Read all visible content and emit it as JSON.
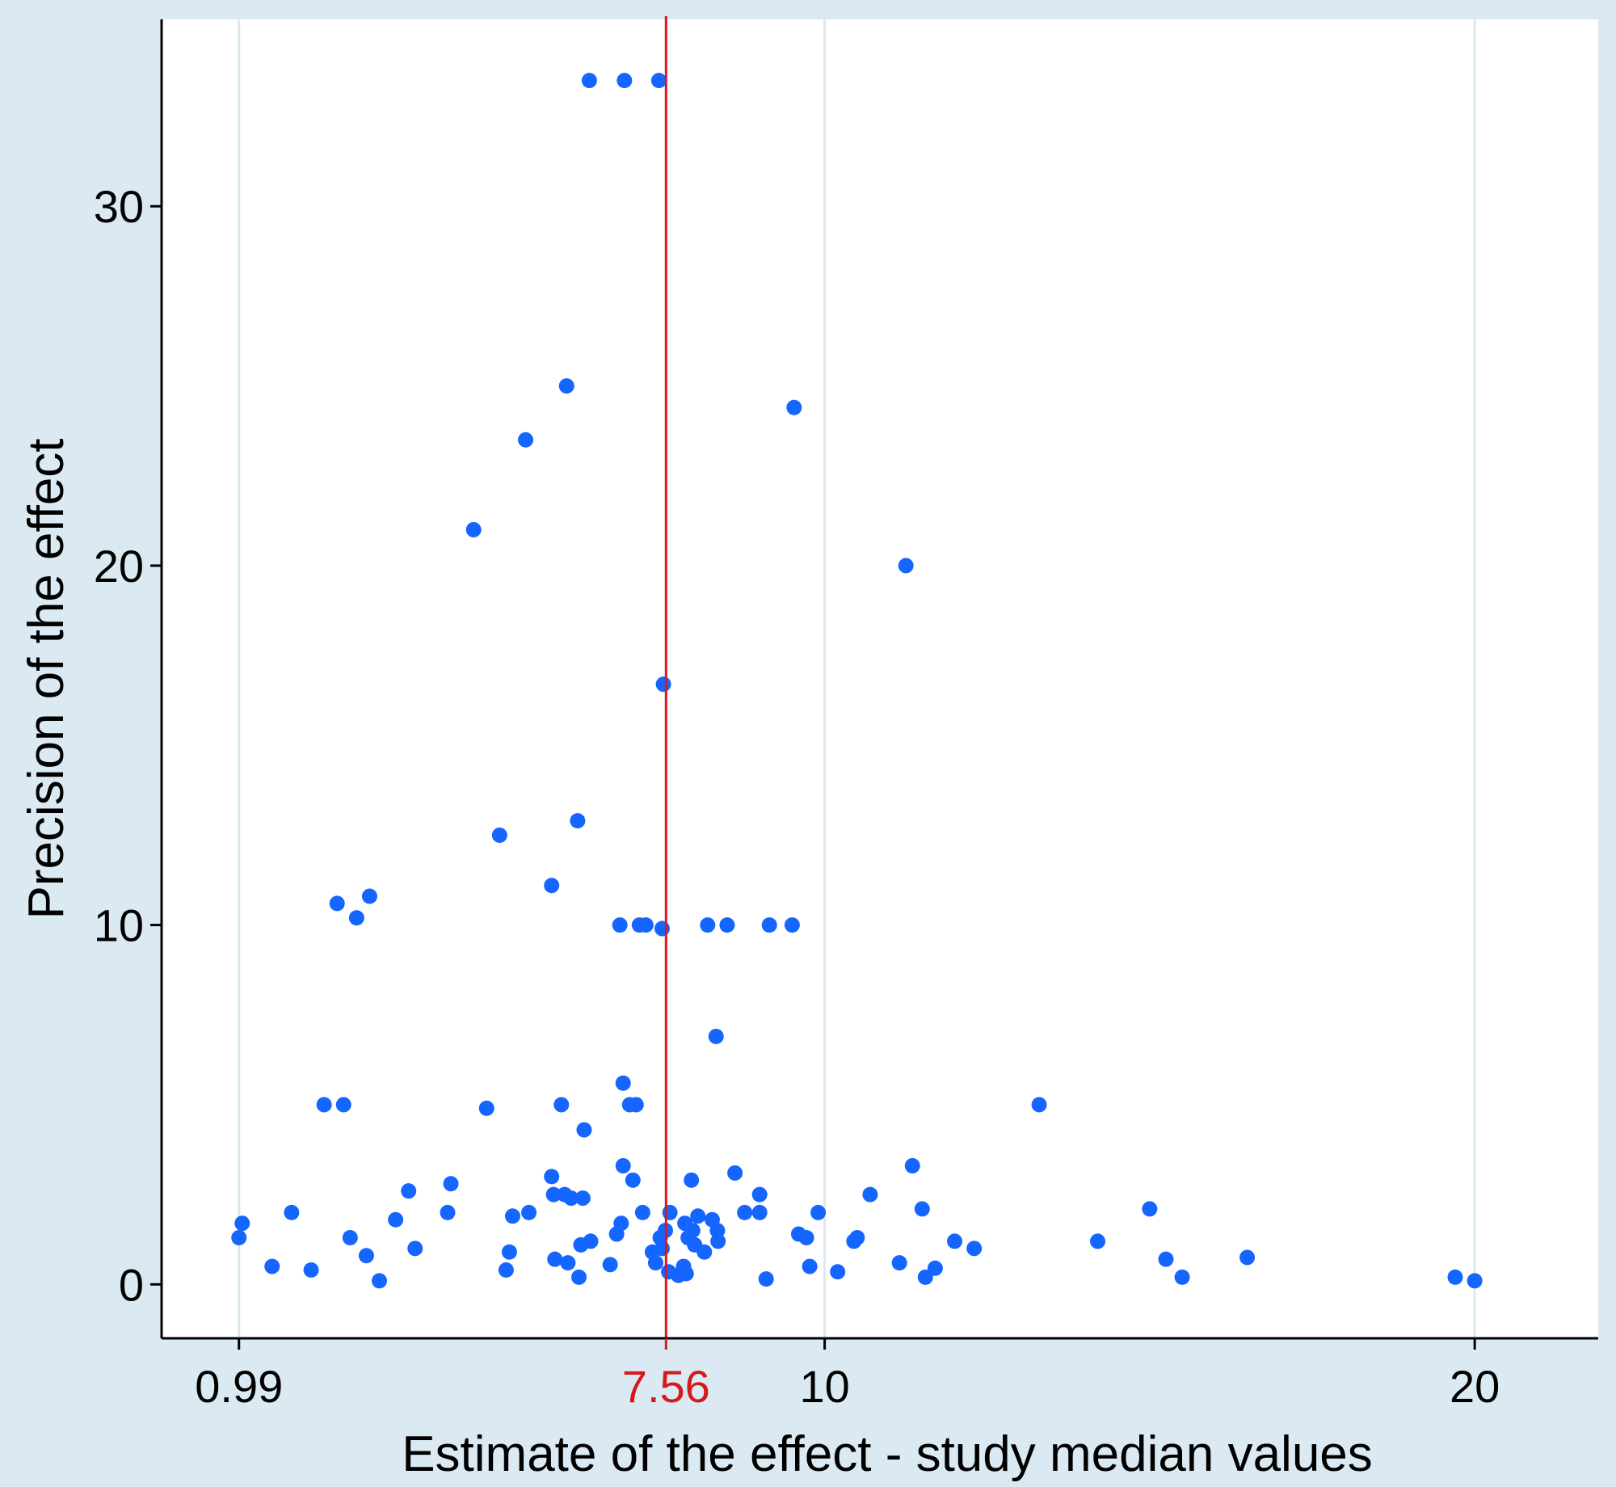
{
  "chart_data": {
    "type": "scatter",
    "title": "",
    "xlabel": "Estimate of the effect - study median values",
    "ylabel": "Precision of the effect",
    "xlim": [
      -0.2,
      21.9
    ],
    "ylim": [
      -1.5,
      35.2
    ],
    "x_ticks": [
      0.99,
      10,
      20
    ],
    "x_tick_labels": [
      "0.99",
      "10",
      "20"
    ],
    "y_ticks": [
      0,
      10,
      20,
      30
    ],
    "y_tick_labels": [
      "0",
      "10",
      "20",
      "30"
    ],
    "grid": "vertical lines at x ticks",
    "reference_line": {
      "x": 7.56,
      "label": "7.56",
      "color": "#d7191c"
    },
    "colors": {
      "points": "#1565ff",
      "reference": "#d7191c",
      "outer_background": "#dbeaf2",
      "panel": "#ffffff",
      "grid": "#dbeaf2"
    },
    "points": [
      {
        "x": 0.99,
        "y": 1.3
      },
      {
        "x": 1.04,
        "y": 1.7
      },
      {
        "x": 1.5,
        "y": 0.5
      },
      {
        "x": 1.8,
        "y": 2.0
      },
      {
        "x": 2.1,
        "y": 0.4
      },
      {
        "x": 2.3,
        "y": 5.0
      },
      {
        "x": 2.5,
        "y": 10.6
      },
      {
        "x": 2.6,
        "y": 5.0
      },
      {
        "x": 2.7,
        "y": 1.3
      },
      {
        "x": 2.8,
        "y": 10.2
      },
      {
        "x": 2.95,
        "y": 0.8
      },
      {
        "x": 3.0,
        "y": 10.8
      },
      {
        "x": 3.15,
        "y": 0.1
      },
      {
        "x": 3.4,
        "y": 1.8
      },
      {
        "x": 3.6,
        "y": 2.6
      },
      {
        "x": 3.7,
        "y": 1.0
      },
      {
        "x": 4.2,
        "y": 2.0
      },
      {
        "x": 4.25,
        "y": 2.8
      },
      {
        "x": 4.6,
        "y": 21.0
      },
      {
        "x": 4.8,
        "y": 4.9
      },
      {
        "x": 5.0,
        "y": 12.5
      },
      {
        "x": 5.1,
        "y": 0.4
      },
      {
        "x": 5.15,
        "y": 0.9
      },
      {
        "x": 5.2,
        "y": 1.9
      },
      {
        "x": 5.4,
        "y": 23.5
      },
      {
        "x": 5.45,
        "y": 2.0
      },
      {
        "x": 5.8,
        "y": 11.1
      },
      {
        "x": 5.8,
        "y": 3.0
      },
      {
        "x": 5.83,
        "y": 2.5
      },
      {
        "x": 5.85,
        "y": 0.7
      },
      {
        "x": 5.95,
        "y": 5.0
      },
      {
        "x": 6.0,
        "y": 2.5
      },
      {
        "x": 6.03,
        "y": 25.0
      },
      {
        "x": 6.05,
        "y": 0.6
      },
      {
        "x": 6.1,
        "y": 2.4
      },
      {
        "x": 6.2,
        "y": 12.9
      },
      {
        "x": 6.22,
        "y": 0.2
      },
      {
        "x": 6.25,
        "y": 1.1
      },
      {
        "x": 6.28,
        "y": 2.4
      },
      {
        "x": 6.3,
        "y": 4.3
      },
      {
        "x": 6.38,
        "y": 33.5
      },
      {
        "x": 6.4,
        "y": 1.2
      },
      {
        "x": 6.7,
        "y": 0.55
      },
      {
        "x": 6.8,
        "y": 1.4
      },
      {
        "x": 6.85,
        "y": 10.0
      },
      {
        "x": 6.87,
        "y": 1.7
      },
      {
        "x": 6.9,
        "y": 3.3
      },
      {
        "x": 6.9,
        "y": 5.6
      },
      {
        "x": 6.92,
        "y": 33.5
      },
      {
        "x": 7.0,
        "y": 5.0
      },
      {
        "x": 7.05,
        "y": 2.9
      },
      {
        "x": 7.1,
        "y": 5.0
      },
      {
        "x": 7.15,
        "y": 10.0
      },
      {
        "x": 7.2,
        "y": 2.0
      },
      {
        "x": 7.25,
        "y": 10.0
      },
      {
        "x": 7.35,
        "y": 0.9
      },
      {
        "x": 7.4,
        "y": 0.6
      },
      {
        "x": 7.45,
        "y": 33.5
      },
      {
        "x": 7.47,
        "y": 1.3
      },
      {
        "x": 7.5,
        "y": 9.9
      },
      {
        "x": 7.5,
        "y": 1.0
      },
      {
        "x": 7.52,
        "y": 16.7
      },
      {
        "x": 7.55,
        "y": 1.5
      },
      {
        "x": 7.6,
        "y": 0.35
      },
      {
        "x": 7.62,
        "y": 2.0
      },
      {
        "x": 7.75,
        "y": 0.25
      },
      {
        "x": 7.83,
        "y": 0.5
      },
      {
        "x": 7.85,
        "y": 1.7
      },
      {
        "x": 7.87,
        "y": 0.3
      },
      {
        "x": 7.9,
        "y": 1.3
      },
      {
        "x": 7.95,
        "y": 2.9
      },
      {
        "x": 7.97,
        "y": 1.5
      },
      {
        "x": 8.0,
        "y": 1.1
      },
      {
        "x": 8.05,
        "y": 1.9
      },
      {
        "x": 8.15,
        "y": 0.9
      },
      {
        "x": 8.2,
        "y": 10.0
      },
      {
        "x": 8.27,
        "y": 1.8
      },
      {
        "x": 8.33,
        "y": 6.9
      },
      {
        "x": 8.35,
        "y": 1.5
      },
      {
        "x": 8.36,
        "y": 1.2
      },
      {
        "x": 8.5,
        "y": 10.0
      },
      {
        "x": 8.62,
        "y": 3.1
      },
      {
        "x": 8.77,
        "y": 2.0
      },
      {
        "x": 9.0,
        "y": 2.5
      },
      {
        "x": 9.0,
        "y": 2.0
      },
      {
        "x": 9.1,
        "y": 0.15
      },
      {
        "x": 9.15,
        "y": 10.0
      },
      {
        "x": 9.5,
        "y": 10.0
      },
      {
        "x": 9.53,
        "y": 24.4
      },
      {
        "x": 9.6,
        "y": 1.4
      },
      {
        "x": 9.72,
        "y": 1.3
      },
      {
        "x": 9.77,
        "y": 0.5
      },
      {
        "x": 9.9,
        "y": 2.0
      },
      {
        "x": 10.2,
        "y": 0.35
      },
      {
        "x": 10.45,
        "y": 1.2
      },
      {
        "x": 10.5,
        "y": 1.3
      },
      {
        "x": 10.7,
        "y": 2.5
      },
      {
        "x": 11.15,
        "y": 0.6
      },
      {
        "x": 11.25,
        "y": 20.0
      },
      {
        "x": 11.35,
        "y": 3.3
      },
      {
        "x": 11.5,
        "y": 2.1
      },
      {
        "x": 11.55,
        "y": 0.2
      },
      {
        "x": 11.7,
        "y": 0.45
      },
      {
        "x": 12.0,
        "y": 1.2
      },
      {
        "x": 12.3,
        "y": 1.0
      },
      {
        "x": 13.3,
        "y": 5.0
      },
      {
        "x": 14.2,
        "y": 1.2
      },
      {
        "x": 15.0,
        "y": 2.1
      },
      {
        "x": 15.25,
        "y": 0.7
      },
      {
        "x": 15.5,
        "y": 0.2
      },
      {
        "x": 16.5,
        "y": 0.75
      },
      {
        "x": 19.7,
        "y": 0.2
      },
      {
        "x": 20.0,
        "y": 0.1
      }
    ]
  }
}
